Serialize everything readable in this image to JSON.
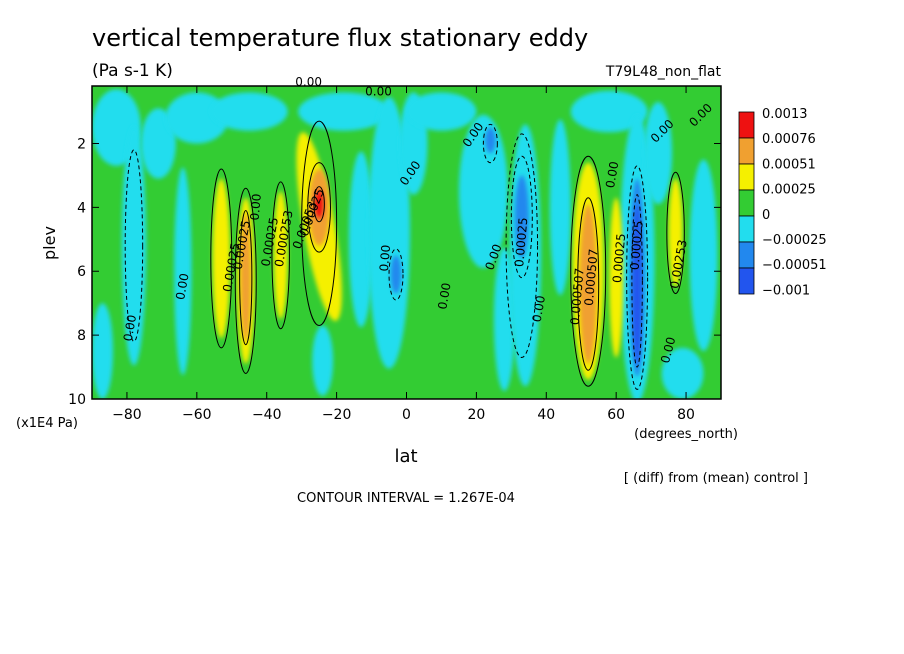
{
  "chart_data": {
    "type": "heatmap",
    "title": "vertical temperature flux stationary eddy",
    "subtitle": "(Pa s-1 K)",
    "run_label": "T79L48_non_flat",
    "xlabel": "lat",
    "x_unit": "(degrees_north)",
    "ylabel": "plev",
    "y_unit": "(x1E4 Pa)",
    "xlim": [
      -90,
      90
    ],
    "ylim": [
      10,
      0.2
    ],
    "x_ticks": [
      -80,
      -60,
      -40,
      -20,
      0,
      20,
      40,
      60,
      80
    ],
    "x_tick_labels": [
      "−80",
      "−60",
      "−40",
      "−20",
      "0",
      "20",
      "40",
      "60",
      "80"
    ],
    "y_ticks": [
      2,
      4,
      6,
      8,
      10
    ],
    "y_tick_labels": [
      "2",
      "4",
      "6",
      "8",
      "10"
    ],
    "colorbar": {
      "labels": [
        "0.0013",
        "0.00076",
        "0.00051",
        "0.00025",
        "0",
        "−0.00025",
        "−0.00051",
        "−0.001"
      ],
      "colors": [
        "#ee1111",
        "#f0a030",
        "#f5f000",
        "#33cc33",
        "#22ddee",
        "#2288ee",
        "#2255ee"
      ]
    },
    "note": "[ (diff) from (mean) control ]",
    "contour_interval": "CONTOUR INTERVAL = 1.267E-04",
    "features": [
      {
        "lat": -75,
        "plev": 5.5,
        "value": -0.0002
      },
      {
        "lat": -66,
        "plev": 6.0,
        "value": -0.0001
      },
      {
        "lat": -53,
        "plev": 5.6,
        "value": 0.00051
      },
      {
        "lat": -46,
        "plev": 6.3,
        "value": 0.0008
      },
      {
        "lat": -36,
        "plev": 5.5,
        "value": 0.00051
      },
      {
        "lat": -25,
        "plev": 4.0,
        "value": 0.0013
      },
      {
        "lat": -3,
        "plev": 6.1,
        "value": -0.0004
      },
      {
        "lat": 24,
        "plev": 1.9,
        "value": -0.00025
      },
      {
        "lat": 33,
        "plev": 4.3,
        "value": -0.0005
      },
      {
        "lat": 52,
        "plev": 6.0,
        "value": 0.0009
      },
      {
        "lat": 66,
        "plev": 6.0,
        "value": -0.0008
      },
      {
        "lat": 77,
        "plev": 4.8,
        "value": 0.00051
      }
    ],
    "contour_labels": [
      "0.00",
      "0.00",
      "0.00",
      "0.00",
      "0.00",
      "0.00",
      "0.00",
      "0.00",
      "0.00",
      "0.00",
      "0.00",
      "0.00",
      "0.00",
      "0.00",
      "0.00",
      "0.00025",
      "0.00025",
      "0.00025",
      "0.000253",
      "0.00025",
      "0.00053",
      "0.00025",
      "0.000507",
      "0.000507",
      "0.00025",
      "0.00025",
      "0.00253"
    ]
  }
}
